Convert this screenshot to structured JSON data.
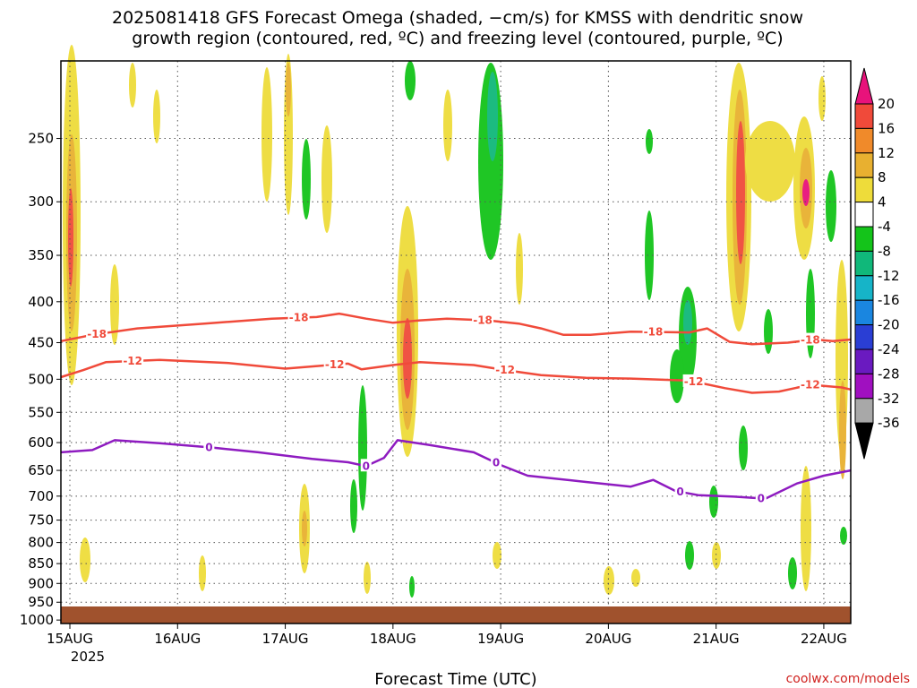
{
  "title": {
    "line1": "2025081418 GFS Forecast Omega (shaded, −cm/s) for KMSS with dendritic snow",
    "line2": "growth region (contoured, red, ºC) and freezing level (contoured, purple, ºC)"
  },
  "credit": "coolwx.com/models",
  "chart_data": {
    "type": "heatmap",
    "xlabel": "Forecast Time (UTC)",
    "x_ticks": [
      "15AUG",
      "16AUG",
      "17AUG",
      "18AUG",
      "19AUG",
      "20AUG",
      "21AUG",
      "22AUG"
    ],
    "x_tick_sub": "2025",
    "x_range_hours": [
      -2,
      174
    ],
    "ylabel": "",
    "y_ticks": [
      250,
      300,
      350,
      400,
      450,
      500,
      550,
      600,
      650,
      700,
      750,
      800,
      850,
      900,
      950,
      1000
    ],
    "y_range_hpa": [
      200,
      1010
    ],
    "y_grid": "dotted",
    "colorbar": {
      "labels": [
        "20",
        "16",
        "12",
        "8",
        "4",
        "-4",
        "-8",
        "-12",
        "-16",
        "-20",
        "-24",
        "-28",
        "-32",
        "-36"
      ],
      "colors": [
        "#e8137b",
        "#f04a3a",
        "#f08a2a",
        "#e8b030",
        "#eedc3a",
        "#ffffff",
        "#14c41a",
        "#10b87a",
        "#16b4c8",
        "#1a86e0",
        "#2a3ed4",
        "#6a1ac0",
        "#a010c0",
        "#a8a8a8",
        "#000000"
      ]
    },
    "contours": [
      {
        "level": -18,
        "color": "#f04a3a",
        "label_hours": [
          6,
          51,
          92,
          130,
          165
        ],
        "points": [
          [
            -2,
            448
          ],
          [
            5,
            440
          ],
          [
            15,
            432
          ],
          [
            30,
            426
          ],
          [
            45,
            420
          ],
          [
            55,
            418
          ],
          [
            60,
            414
          ],
          [
            66,
            420
          ],
          [
            72,
            425
          ],
          [
            78,
            422
          ],
          [
            84,
            420
          ],
          [
            93,
            422
          ],
          [
            100,
            426
          ],
          [
            105,
            432
          ],
          [
            110,
            440
          ],
          [
            116,
            440
          ],
          [
            125,
            436
          ],
          [
            138,
            437
          ],
          [
            142,
            432
          ],
          [
            147,
            449
          ],
          [
            152,
            452
          ],
          [
            160,
            450
          ],
          [
            166,
            446
          ],
          [
            170,
            448
          ],
          [
            174,
            446
          ]
        ]
      },
      {
        "level": -12,
        "color": "#f04a3a",
        "label_hours": [
          14,
          59,
          97,
          139,
          165
        ],
        "points": [
          [
            -2,
            497
          ],
          [
            3,
            487
          ],
          [
            8,
            476
          ],
          [
            20,
            473
          ],
          [
            35,
            477
          ],
          [
            48,
            485
          ],
          [
            56,
            481
          ],
          [
            62,
            478
          ],
          [
            65,
            486
          ],
          [
            72,
            480
          ],
          [
            78,
            476
          ],
          [
            90,
            480
          ],
          [
            97,
            487
          ],
          [
            105,
            494
          ],
          [
            115,
            498
          ],
          [
            125,
            499
          ],
          [
            138,
            502
          ],
          [
            146,
            513
          ],
          [
            152,
            520
          ],
          [
            158,
            518
          ],
          [
            165,
            508
          ],
          [
            172,
            512
          ],
          [
            174,
            515
          ]
        ]
      },
      {
        "level": 0,
        "color": "#8e1bc0",
        "label_hours": [
          31,
          66,
          95,
          136,
          154
        ],
        "points": [
          [
            -2,
            617
          ],
          [
            5,
            613
          ],
          [
            10,
            596
          ],
          [
            20,
            601
          ],
          [
            32,
            609
          ],
          [
            42,
            617
          ],
          [
            54,
            629
          ],
          [
            62,
            635
          ],
          [
            66,
            642
          ],
          [
            70,
            627
          ],
          [
            73,
            596
          ],
          [
            80,
            604
          ],
          [
            90,
            617
          ],
          [
            96,
            640
          ],
          [
            102,
            660
          ],
          [
            115,
            672
          ],
          [
            125,
            681
          ],
          [
            130,
            668
          ],
          [
            135,
            690
          ],
          [
            140,
            698
          ],
          [
            148,
            701
          ],
          [
            155,
            705
          ],
          [
            162,
            675
          ],
          [
            168,
            660
          ],
          [
            174,
            650
          ]
        ]
      }
    ]
  }
}
